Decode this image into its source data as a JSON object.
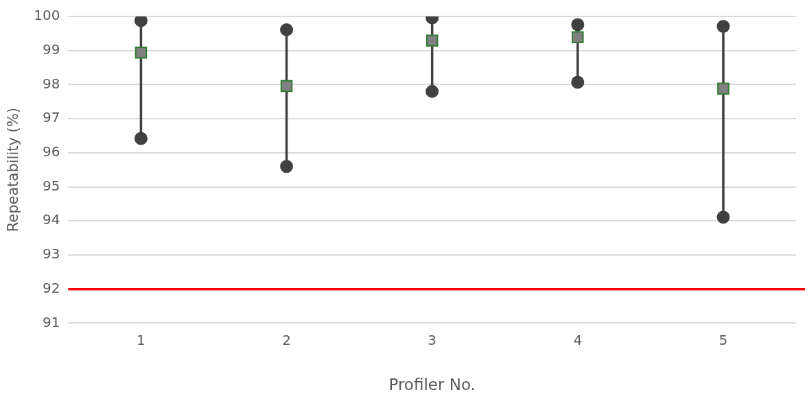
{
  "chart_data": {
    "type": "scatter",
    "xlabel": "Profiler No.",
    "ylabel": "Repeatability (%)",
    "categories": [
      "1",
      "2",
      "3",
      "4",
      "5"
    ],
    "series": [
      {
        "type": "line",
        "color": "#404040",
        "marker": "circle",
        "x": [
          "1",
          "1"
        ],
        "values": [
          96.42,
          99.88
        ]
      },
      {
        "type": "line",
        "color": "#404040",
        "marker": "circle",
        "x": [
          "2",
          "2"
        ],
        "values": [
          95.6,
          99.61
        ]
      },
      {
        "type": "line",
        "color": "#404040",
        "marker": "circle",
        "x": [
          "3",
          "3"
        ],
        "values": [
          97.8,
          99.96
        ]
      },
      {
        "type": "line",
        "color": "#404040",
        "marker": "circle",
        "x": [
          "4",
          "4"
        ],
        "values": [
          98.07,
          99.76
        ]
      },
      {
        "type": "line",
        "color": "#404040",
        "marker": "circle",
        "x": [
          "5",
          "5"
        ],
        "values": [
          94.11,
          99.71
        ]
      },
      {
        "color": "#808080",
        "values": [
          98.94,
          97.96,
          99.29,
          99.39,
          97.88
        ]
      }
    ],
    "marker": "square",
    "ylim": [
      91,
      100
    ],
    "yticks": [
      91,
      92,
      93,
      94,
      95,
      96,
      97,
      98,
      99,
      100
    ],
    "grid": "y",
    "legend": false,
    "ref_lines": [
      {
        "axis": "y",
        "value": 92,
        "color": "#ff0000"
      }
    ]
  }
}
